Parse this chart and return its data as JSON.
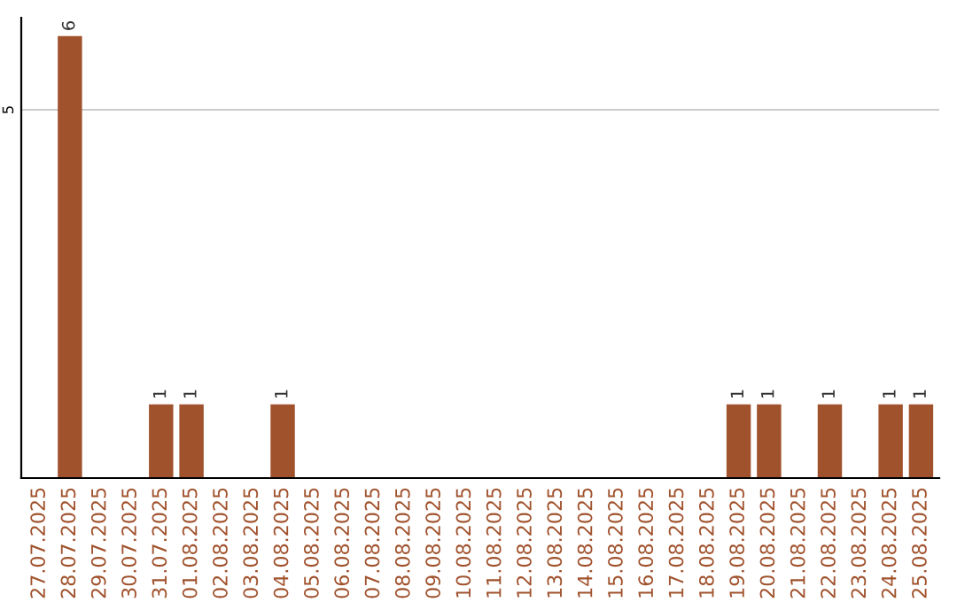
{
  "chart_data": {
    "type": "bar",
    "categories": [
      "27.07.2025",
      "28.07.2025",
      "29.07.2025",
      "30.07.2025",
      "31.07.2025",
      "01.08.2025",
      "02.08.2025",
      "03.08.2025",
      "04.08.2025",
      "05.08.2025",
      "06.08.2025",
      "07.08.2025",
      "08.08.2025",
      "09.08.2025",
      "10.08.2025",
      "11.08.2025",
      "12.08.2025",
      "13.08.2025",
      "14.08.2025",
      "15.08.2025",
      "16.08.2025",
      "17.08.2025",
      "18.08.2025",
      "19.08.2025",
      "20.08.2025",
      "21.08.2025",
      "22.08.2025",
      "23.08.2025",
      "24.08.2025",
      "25.08.2025"
    ],
    "values": [
      0,
      6,
      0,
      0,
      1,
      1,
      0,
      0,
      1,
      0,
      0,
      0,
      0,
      0,
      0,
      0,
      0,
      0,
      0,
      0,
      0,
      0,
      0,
      1,
      1,
      0,
      1,
      0,
      1,
      1
    ],
    "value_labels": [
      null,
      "6",
      null,
      null,
      "1",
      "1",
      null,
      null,
      "1",
      null,
      null,
      null,
      null,
      null,
      null,
      null,
      null,
      null,
      null,
      null,
      null,
      null,
      null,
      "1",
      "1",
      null,
      "1",
      null,
      "1",
      "1"
    ],
    "color": "#a0522d",
    "ylim": [
      0,
      6.25
    ],
    "yticks": [
      5
    ],
    "grid": "y"
  }
}
